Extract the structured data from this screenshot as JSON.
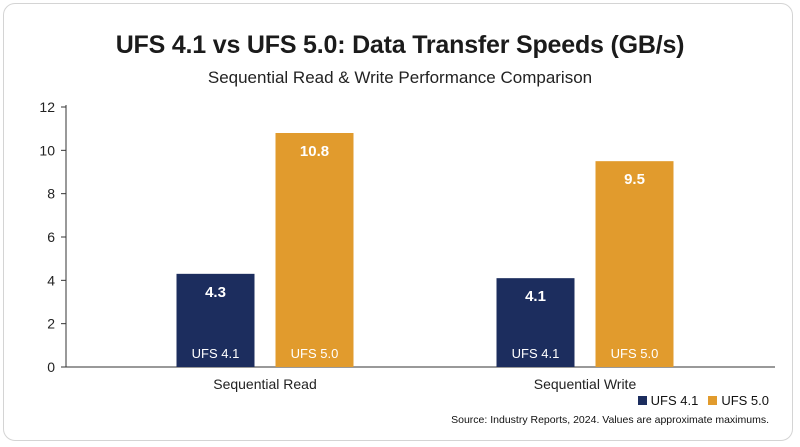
{
  "title": "UFS 4.1 vs UFS 5.0: Data Transfer Speeds (GB/s)",
  "subtitle": "Sequential Read & Write Performance Comparison",
  "source": "Source: Industry Reports, 2024. Values are approximate maximums.",
  "legend": [
    {
      "label": "UFS 4.1",
      "color": "#1c2d5e"
    },
    {
      "label": "UFS 5.0",
      "color": "#e19b2d"
    }
  ],
  "chart_data": {
    "type": "bar",
    "categories": [
      "Sequential Read",
      "Sequential Write"
    ],
    "series": [
      {
        "name": "UFS 4.1",
        "values": [
          4.3,
          4.1
        ],
        "color": "#1c2d5e"
      },
      {
        "name": "UFS 5.0",
        "values": [
          10.8,
          9.5
        ],
        "color": "#e19b2d"
      }
    ],
    "ylim": [
      0,
      12
    ],
    "yticks": [
      0,
      2,
      4,
      6,
      8,
      10,
      12
    ],
    "grid": false,
    "legend_position": "bottom-right",
    "data_labels": true,
    "bar_labels": [
      "UFS 4.1",
      "UFS 5.0"
    ]
  }
}
